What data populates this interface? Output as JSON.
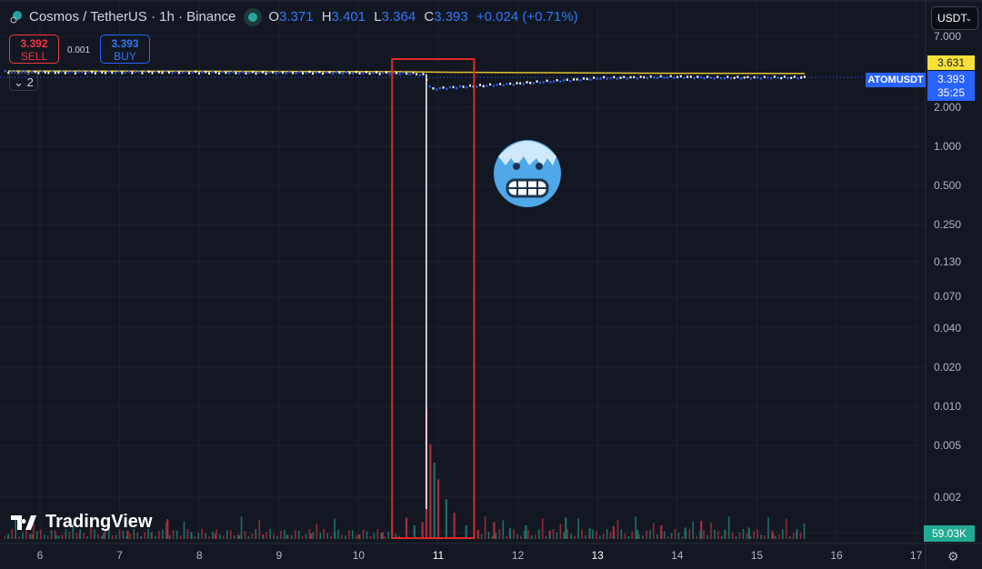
{
  "header": {
    "symbol_title": "Cosmos / TetherUS · 1h · Binance",
    "ohlc": {
      "o_label": "O",
      "o": "3.371",
      "h_label": "H",
      "h": "3.401",
      "l_label": "L",
      "l": "3.364",
      "c_label": "C",
      "c": "3.393",
      "change": "+0.024 (+0.71%)"
    },
    "market_status_color": "#26a69a"
  },
  "trade": {
    "sell_price": "3.392",
    "sell_label": "SELL",
    "spread": "0.001",
    "buy_price": "3.393",
    "buy_label": "BUY"
  },
  "indicators_collapsed_count": "2",
  "currency_select": "USDT",
  "branding": "TradingView",
  "price_axis": {
    "ticks": [
      "7.000",
      "2.000",
      "1.000",
      "0.500",
      "0.250",
      "0.130",
      "0.070",
      "0.040",
      "0.020",
      "0.010",
      "0.005",
      "0.002"
    ],
    "ma_value": "3.631",
    "symbol_tag": "ATOMUSDT",
    "last_price": "3.393",
    "countdown": "35:25",
    "volume_tag": "59.03K"
  },
  "time_axis": {
    "ticks": [
      "6",
      "7",
      "8",
      "9",
      "10",
      "11",
      "12",
      "13",
      "14",
      "15",
      "16",
      "17"
    ]
  },
  "colors": {
    "up": "#26a69a",
    "down": "#f23645",
    "line_blue": "#2962ff",
    "ma": "#e0c22e",
    "highlight_box": "#e02a2a",
    "bg": "#131722"
  },
  "chart_data": {
    "type": "line",
    "scale": "log",
    "xlabel": "",
    "ylabel": "",
    "ylim": [
      0.001,
      7.5
    ],
    "series": [
      {
        "kind": "price_close",
        "x": [
          5.6,
          6.5,
          7.5,
          8.5,
          9.5,
          10.3,
          10.7,
          10.8,
          10.85,
          10.9,
          11.0,
          11.3,
          11.6,
          12.0,
          12.5,
          13.0,
          13.5,
          14.0,
          14.5,
          15.0,
          15.6
        ],
        "y": [
          3.75,
          3.72,
          3.74,
          3.7,
          3.7,
          3.68,
          3.64,
          3.55,
          3.25,
          2.75,
          2.8,
          2.88,
          2.95,
          3.05,
          3.2,
          3.35,
          3.4,
          3.43,
          3.38,
          3.39,
          3.393
        ]
      },
      {
        "kind": "moving_average",
        "x": [
          5.6,
          8,
          10.5,
          11,
          12,
          13,
          14,
          15,
          15.6
        ],
        "y": [
          3.8,
          3.78,
          3.75,
          3.72,
          3.69,
          3.67,
          3.65,
          3.64,
          3.631
        ]
      }
    ],
    "crash_wick": {
      "x": 10.85,
      "high": 3.6,
      "low": 0.001
    },
    "volume_k": {
      "x": [
        5.6,
        5.9,
        6.2,
        6.5,
        6.8,
        7.1,
        7.4,
        7.6,
        7.9,
        8.2,
        8.5,
        8.8,
        9.1,
        9.4,
        9.7,
        10.0,
        10.3,
        10.6,
        10.7,
        10.8,
        10.85,
        10.9,
        10.95,
        11.0,
        11.1,
        11.2,
        11.35,
        11.5,
        11.7,
        11.9,
        12.1,
        12.4,
        12.6,
        12.9,
        13.2,
        13.5,
        13.8,
        14.1,
        14.3,
        14.6,
        14.9,
        15.2,
        15.5
      ],
      "v": [
        20,
        30,
        25,
        35,
        40,
        55,
        45,
        130,
        30,
        35,
        25,
        30,
        28,
        35,
        40,
        30,
        45,
        140,
        90,
        110,
        850,
        620,
        500,
        390,
        260,
        170,
        90,
        60,
        110,
        70,
        90,
        55,
        140,
        70,
        85,
        60,
        90,
        75,
        120,
        60,
        75,
        45,
        50
      ],
      "up": [
        1,
        0,
        1,
        0,
        1,
        0,
        1,
        0,
        1,
        0,
        1,
        0,
        1,
        0,
        1,
        0,
        0,
        0,
        1,
        0,
        0,
        0,
        1,
        0,
        1,
        0,
        1,
        0,
        0,
        1,
        1,
        0,
        1,
        1,
        0,
        1,
        0,
        1,
        0,
        1,
        1,
        0,
        0
      ]
    },
    "highlight": {
      "x_from": 10.42,
      "x_to": 11.45
    }
  },
  "decor": {
    "emoji": "cold-face"
  }
}
